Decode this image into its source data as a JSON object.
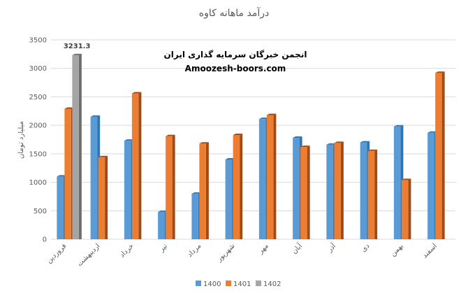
{
  "chart_data": {
    "type": "bar",
    "title": "درآمد ماهانه کاوه",
    "ylabel": "میلیارد تومان",
    "xlabel": "",
    "ylim": [
      0,
      3500
    ],
    "yticks": [
      0,
      500,
      1000,
      1500,
      2000,
      2500,
      3000,
      3500
    ],
    "categories": [
      "فروردین",
      "اردیبهشت",
      "خرداد",
      "تیر",
      "مرداد",
      "شهریور",
      "مهر",
      "آبان",
      "آذر",
      "دی",
      "بهمن",
      "اسفند"
    ],
    "series": [
      {
        "name": "1400",
        "color": "#5B9BD5",
        "sideColor": "#2E75B6",
        "values": [
          1100,
          2150,
          1730,
          480,
          800,
          1400,
          2110,
          1780,
          1660,
          1700,
          1980,
          1870
        ]
      },
      {
        "name": "1401",
        "color": "#ED7D31",
        "sideColor": "#A04B15",
        "values": [
          2290,
          1440,
          2560,
          1810,
          1680,
          1830,
          2180,
          1620,
          1690,
          1550,
          1040,
          2920
        ]
      },
      {
        "name": "1402",
        "color": "#A5A5A5",
        "sideColor": "#6E6E6E",
        "values": [
          3231.3,
          null,
          null,
          null,
          null,
          null,
          null,
          null,
          null,
          null,
          null,
          null
        ]
      }
    ],
    "data_labels": [
      {
        "series": "1402",
        "category": "فروردین",
        "text": "3231.3"
      }
    ],
    "annotations": [
      "انجمن خبرگان سرمایه گذاری ایران",
      "Amoozesh-boors.com"
    ],
    "legend_position": "bottom",
    "grid": true
  }
}
